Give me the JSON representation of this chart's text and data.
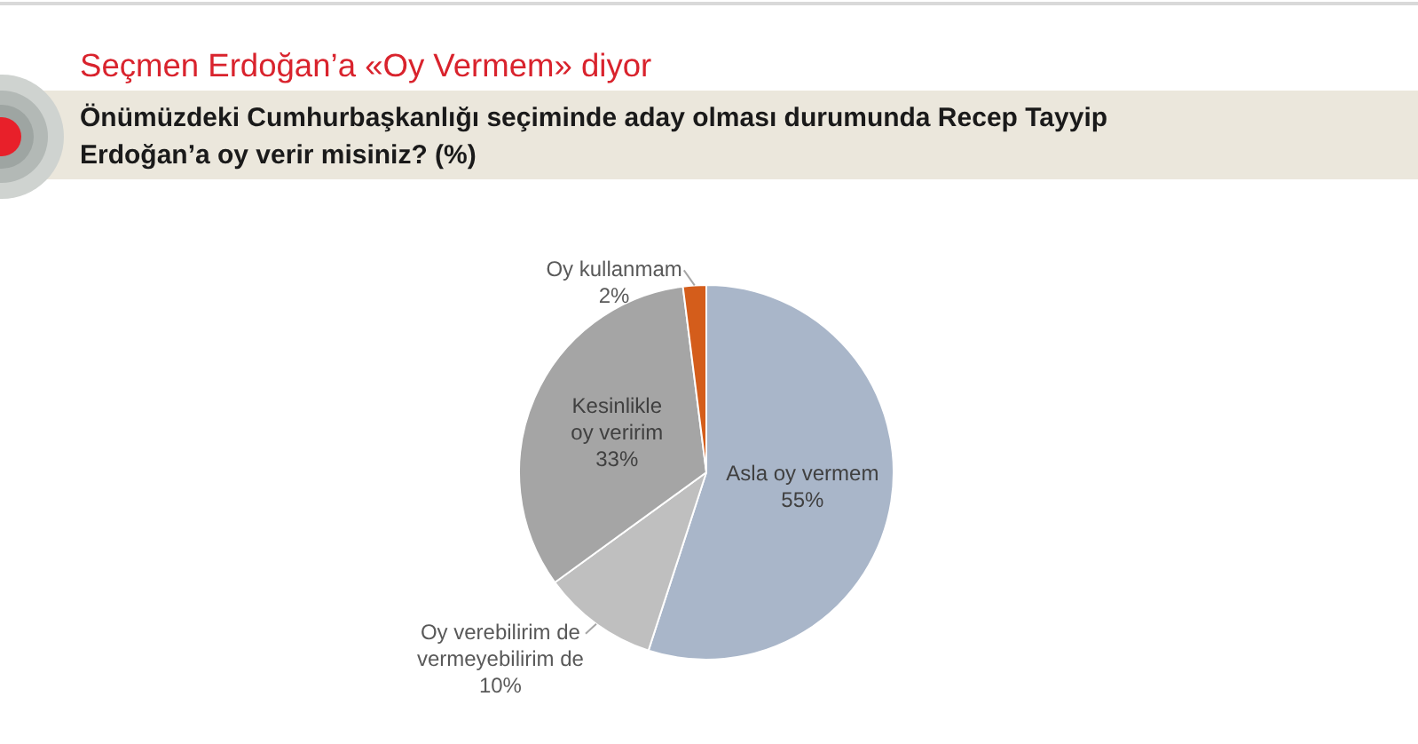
{
  "chart_data": {
    "type": "pie",
    "title": "Seçmen Erdoğan’a «Oy Vermem» diyor",
    "subtitle": "Önümüzdeki Cumhurbaşkanlığı seçiminde aday olması durumunda Recep Tayyip Erdoğan’a oy verir misiniz? (%)",
    "categories": [
      "Asla oy vermem",
      "Oy verebilirim de vermeyebilirim de",
      "Kesinlikle oy veririm",
      "Oy kullanmam"
    ],
    "values": [
      55,
      10,
      33,
      2
    ],
    "value_labels": [
      "55%",
      "10%",
      "33%",
      "2%"
    ],
    "colors": [
      "#a9b6c9",
      "#bfbfbf",
      "#a5a5a5",
      "#d45d1b"
    ]
  }
}
